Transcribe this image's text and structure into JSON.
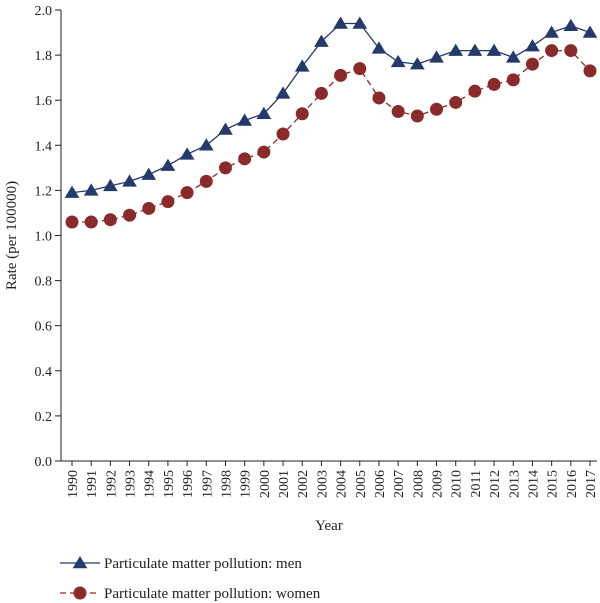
{
  "chart_data": {
    "type": "line",
    "title": "",
    "xlabel": "Year",
    "ylabel": "Rate (per 100000)",
    "ylim": [
      0.0,
      2.0
    ],
    "yticks": [
      "0.0",
      "0.2",
      "0.4",
      "0.6",
      "0.8",
      "1.0",
      "1.2",
      "1.4",
      "1.6",
      "1.8",
      "2.0"
    ],
    "categories": [
      "1990",
      "1991",
      "1992",
      "1993",
      "1994",
      "1995",
      "1996",
      "1997",
      "1998",
      "1999",
      "2000",
      "2001",
      "2002",
      "2003",
      "2004",
      "2005",
      "2006",
      "2007",
      "2008",
      "2009",
      "2010",
      "2011",
      "2012",
      "2013",
      "2014",
      "2015",
      "2016",
      "2017"
    ],
    "grid": false,
    "legend_position": "bottom-left",
    "series": [
      {
        "name": "Particulate matter pollution: men",
        "color": "#243a6b",
        "marker": "triangle",
        "line_style": "solid",
        "values": [
          1.19,
          1.2,
          1.22,
          1.24,
          1.27,
          1.31,
          1.36,
          1.4,
          1.47,
          1.51,
          1.54,
          1.63,
          1.75,
          1.86,
          1.94,
          1.94,
          1.83,
          1.77,
          1.76,
          1.79,
          1.82,
          1.82,
          1.82,
          1.79,
          1.84,
          1.9,
          1.93,
          1.9
        ]
      },
      {
        "name": "Particulate matter pollution: women",
        "color": "#8b2a2a",
        "marker": "circle",
        "line_style": "dashed",
        "values": [
          1.06,
          1.06,
          1.07,
          1.09,
          1.12,
          1.15,
          1.19,
          1.24,
          1.3,
          1.34,
          1.37,
          1.45,
          1.54,
          1.63,
          1.71,
          1.74,
          1.61,
          1.55,
          1.53,
          1.56,
          1.59,
          1.64,
          1.67,
          1.69,
          1.76,
          1.82,
          1.82,
          1.73
        ]
      }
    ]
  }
}
